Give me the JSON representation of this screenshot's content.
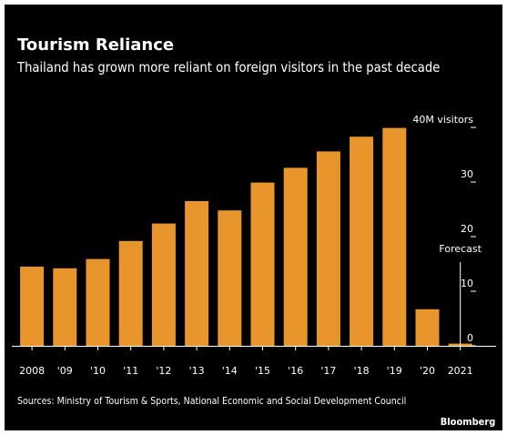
{
  "chart_data": {
    "type": "bar",
    "title": "Tourism Reliance",
    "subtitle": "Thailand has grown more reliant on foreign visitors in the past decade",
    "categories": [
      "2008",
      "'09",
      "'10",
      "'11",
      "'12",
      "'13",
      "'14",
      "'15",
      "'16",
      "'17",
      "'18",
      "'19",
      "'20",
      "2021"
    ],
    "values": [
      14.5,
      14.2,
      15.9,
      19.2,
      22.4,
      26.5,
      24.8,
      29.9,
      32.6,
      35.6,
      38.3,
      39.9,
      6.7,
      0.4
    ],
    "ylim": [
      0,
      40
    ],
    "yticks": [
      0,
      10,
      20,
      30,
      40
    ],
    "ytick_labels": [
      "0",
      "10",
      "20",
      "30",
      "40M visitors"
    ],
    "annotation": "Forecast",
    "forecast_category": "2021",
    "grid": false,
    "colors": {
      "background": "#000000",
      "bar": "#e8962b",
      "text": "#ffffff",
      "axis": "#ffffff"
    }
  },
  "footer": {
    "source": "Sources: Ministry of Tourism & Sports, National Economic and Social Development Council",
    "brand": "Bloomberg"
  }
}
